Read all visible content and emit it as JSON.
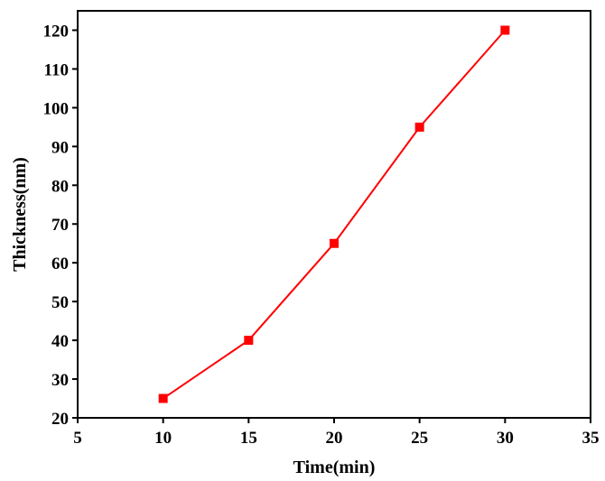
{
  "chart_data": {
    "type": "line",
    "xlabel": "Time(min)",
    "ylabel": "Thickness(nm)",
    "xlim": [
      5,
      35
    ],
    "ylim": [
      20,
      125
    ],
    "xticks": [
      5,
      10,
      15,
      20,
      25,
      30,
      35
    ],
    "yticks": [
      20,
      30,
      40,
      50,
      60,
      70,
      80,
      90,
      100,
      110,
      120
    ],
    "grid": false,
    "legend": "none",
    "series": [
      {
        "color": "#ff0000",
        "marker": "square",
        "x": [
          10,
          15,
          20,
          25,
          30
        ],
        "y": [
          25,
          40,
          65,
          95,
          120
        ]
      }
    ]
  }
}
